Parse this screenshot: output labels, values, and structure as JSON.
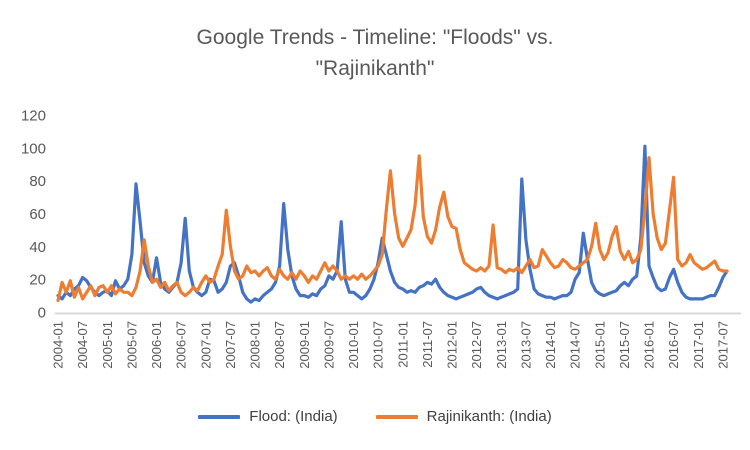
{
  "title": {
    "line1": "Google Trends - Timeline: \"Floods\" vs.",
    "line2": "\"Rajinikanth\""
  },
  "colors": {
    "title_text": "#595959",
    "axis_labels": "#595959",
    "axis_line": "#d9d9d9",
    "legend_text": "#404040",
    "flood_line": "#4472C4",
    "rajinikanth_line": "#ED7D31",
    "background": "#ffffff"
  },
  "chart_data": {
    "type": "line",
    "title": "Google Trends - Timeline: \"Floods\" vs. \"Rajinikanth\"",
    "xlabel": "",
    "ylabel": "",
    "ylim": [
      0,
      120
    ],
    "y_ticks": [
      0,
      20,
      40,
      60,
      80,
      100,
      120
    ],
    "grid": false,
    "legend_position": "bottom",
    "x_monthly_start": "2004-01",
    "x_monthly_end": "2017-08",
    "x_tick_every_months": 6,
    "x_tick_labels": [
      "2004-01",
      "2004-07",
      "2005-01",
      "2005-07",
      "2006-01",
      "2006-07",
      "2007-01",
      "2007-07",
      "2008-01",
      "2008-07",
      "2009-01",
      "2009-07",
      "2010-01",
      "2010-07",
      "2011-01",
      "2011-07",
      "2012-01",
      "2012-07",
      "2013-01",
      "2013-07",
      "2014-01",
      "2014-07",
      "2015-01",
      "2015-07",
      "2016-01",
      "2016-07",
      "2017-01",
      "2017-07"
    ],
    "series": [
      {
        "name": "Flood: (India)",
        "color": "#4472C4",
        "values": [
          10,
          8,
          12,
          10,
          14,
          16,
          21,
          19,
          15,
          12,
          10,
          12,
          13,
          10,
          19,
          14,
          16,
          20,
          35,
          78,
          55,
          30,
          22,
          18,
          33,
          18,
          14,
          12,
          15,
          18,
          30,
          57,
          25,
          15,
          12,
          10,
          12,
          20,
          19,
          12,
          14,
          18,
          28,
          30,
          22,
          12,
          8,
          6,
          8,
          7,
          10,
          12,
          14,
          18,
          28,
          66,
          38,
          22,
          14,
          10,
          10,
          9,
          11,
          10,
          14,
          16,
          22,
          20,
          25,
          55,
          20,
          12,
          12,
          10,
          8,
          10,
          14,
          20,
          30,
          45,
          35,
          25,
          18,
          15,
          14,
          12,
          13,
          12,
          15,
          16,
          18,
          17,
          20,
          15,
          12,
          10,
          9,
          8,
          9,
          10,
          11,
          12,
          14,
          15,
          12,
          10,
          9,
          8,
          9,
          10,
          11,
          12,
          14,
          81,
          44,
          26,
          14,
          11,
          10,
          9,
          9,
          8,
          9,
          10,
          10,
          12,
          20,
          24,
          48,
          32,
          18,
          13,
          11,
          10,
          11,
          12,
          13,
          16,
          18,
          16,
          20,
          22,
          45,
          101,
          28,
          21,
          15,
          13,
          14,
          21,
          26,
          18,
          12,
          9,
          8,
          8,
          8,
          8,
          9,
          10,
          10,
          15,
          21,
          25
        ]
      },
      {
        "name": "Rajinikanth: (India)",
        "color": "#ED7D31",
        "values": [
          7,
          18,
          12,
          19,
          9,
          15,
          8,
          12,
          16,
          10,
          15,
          16,
          12,
          16,
          11,
          14,
          12,
          12,
          10,
          15,
          25,
          44,
          28,
          18,
          20,
          15,
          18,
          13,
          16,
          18,
          12,
          10,
          12,
          15,
          13,
          18,
          22,
          18,
          20,
          28,
          35,
          62,
          40,
          25,
          20,
          22,
          28,
          24,
          25,
          22,
          25,
          27,
          22,
          20,
          26,
          22,
          20,
          24,
          20,
          25,
          22,
          18,
          22,
          20,
          25,
          30,
          25,
          28,
          25,
          20,
          22,
          20,
          22,
          20,
          23,
          20,
          22,
          25,
          28,
          35,
          62,
          86,
          60,
          45,
          40,
          45,
          50,
          65,
          95,
          58,
          46,
          42,
          50,
          64,
          73,
          58,
          52,
          51,
          38,
          30,
          28,
          26,
          25,
          27,
          25,
          28,
          53,
          27,
          26,
          24,
          26,
          25,
          27,
          24,
          28,
          32,
          27,
          28,
          38,
          34,
          30,
          27,
          28,
          32,
          30,
          27,
          26,
          28,
          30,
          32,
          40,
          54,
          38,
          32,
          36,
          46,
          52,
          37,
          32,
          37,
          30,
          32,
          38,
          62,
          94,
          60,
          45,
          38,
          42,
          62,
          82,
          32,
          28,
          30,
          35,
          30,
          28,
          26,
          27,
          29,
          31,
          26,
          25,
          25
        ]
      }
    ]
  },
  "legend": {
    "items": [
      {
        "label": "Flood: (India)"
      },
      {
        "label": "Rajinikanth: (India)"
      }
    ]
  }
}
